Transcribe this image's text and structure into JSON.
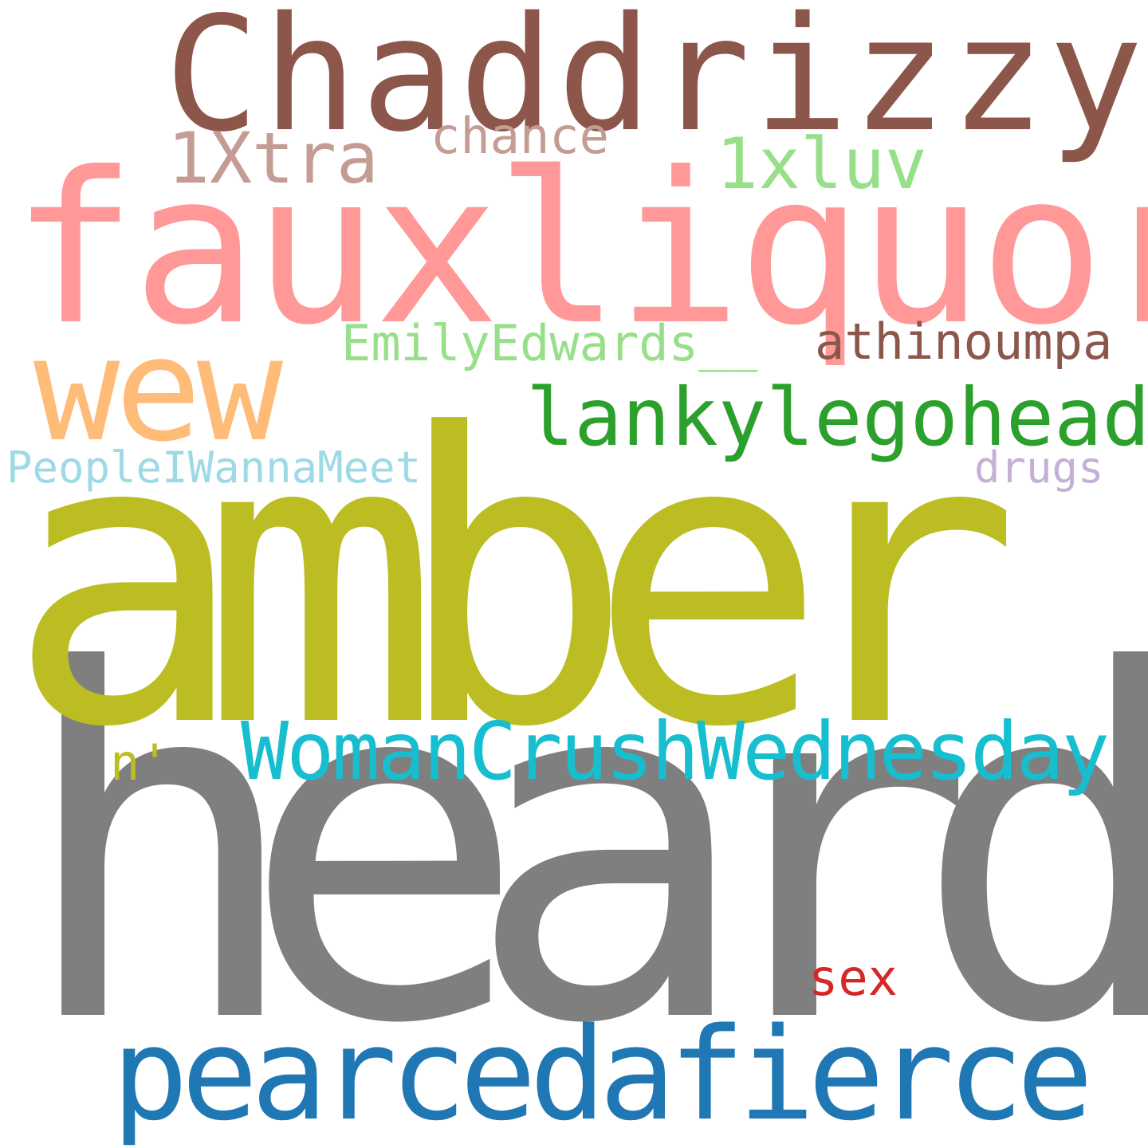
{
  "words": {
    "chaddrizzy": {
      "text": "Chaddrizzy",
      "color": "#8c564b"
    },
    "fauxliquor": {
      "text": "fauxliquor",
      "color": "#ff9896"
    },
    "xtra": {
      "text": "1Xtra",
      "color": "#c49c94"
    },
    "chance": {
      "text": "chance",
      "color": "#c49c94"
    },
    "xluv": {
      "text": "1xluv",
      "color": "#98df8a"
    },
    "emilyedwards": {
      "text": "EmilyEdwards__",
      "color": "#98df8a"
    },
    "athinoumpa": {
      "text": "athinoumpa",
      "color": "#8c564b"
    },
    "wew": {
      "text": "wew",
      "color": "#ffbb78"
    },
    "lankylegohead": {
      "text": "lankylegohead",
      "color": "#2ca02c"
    },
    "peopleiwannameet": {
      "text": "PeopleIWannaMeet",
      "color": "#9edae5"
    },
    "drugs": {
      "text": "drugs",
      "color": "#c5b0d5"
    },
    "amber": {
      "text": "amber",
      "color": "#bcbd22"
    },
    "womancrush": {
      "text": "WomanCrushWednesday",
      "color": "#17becf"
    },
    "n": {
      "text": "n'",
      "color": "#bcbd22"
    },
    "heard": {
      "text": "heard",
      "color": "#7f7f7f"
    },
    "sex": {
      "text": "sex",
      "color": "#d62728"
    },
    "pearcedafierce": {
      "text": "pearcedafierce",
      "color": "#1f77b4"
    }
  }
}
